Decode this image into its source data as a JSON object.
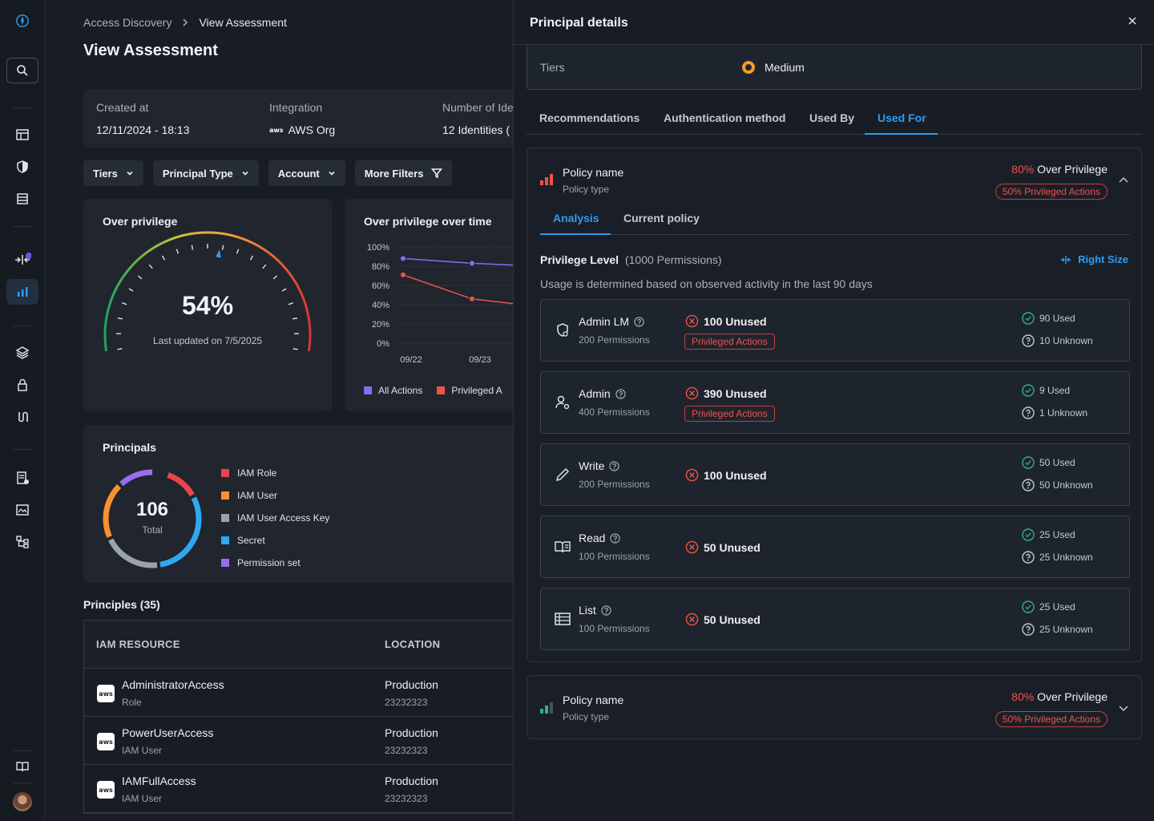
{
  "breadcrumb": {
    "parent": "Access Discovery",
    "current": "View Assessment"
  },
  "page_title": "View Assessment",
  "summary": {
    "created_label": "Created at",
    "created_value": "12/11/2024 - 18:13",
    "integration_label": "Integration",
    "integration_value": "AWS Org",
    "identities_label": "Number of Ide",
    "identities_value": "12 Identities ("
  },
  "filters": [
    "Tiers",
    "Principal Type",
    "Account",
    "More Filters"
  ],
  "over_privilege": {
    "title": "Over privilege",
    "percent": "54%",
    "updated": "Last updated on 7/5/2025",
    "value": 54
  },
  "over_time": {
    "title": "Over privilege over time",
    "legend": [
      "All Actions",
      "Privileged A"
    ],
    "colors": [
      "#8b6cf0",
      "#f0524b"
    ]
  },
  "chart_data": {
    "type": "line",
    "x": [
      "09/22",
      "09/23"
    ],
    "yticks": [
      "100%",
      "80%",
      "60%",
      "40%",
      "20%",
      "0%"
    ],
    "ylim": [
      0,
      100
    ],
    "series": [
      {
        "name": "All Actions",
        "values": [
          88,
          83
        ]
      },
      {
        "name": "Privileged A",
        "values": [
          71,
          46
        ]
      }
    ]
  },
  "principals": {
    "title": "Principals",
    "total": "106",
    "total_label": "Total",
    "legend": [
      {
        "label": "IAM Role",
        "color": "#e8454a"
      },
      {
        "label": "IAM User",
        "color": "#f5922f"
      },
      {
        "label": "IAM User Access Key",
        "color": "#9aa2ad"
      },
      {
        "label": "Secret",
        "color": "#2fa8f0"
      },
      {
        "label": "Permission set",
        "color": "#9b6cf0"
      }
    ]
  },
  "principles_section": "Principles (35)",
  "table": {
    "headers": [
      "IAM RESOURCE",
      "LOCATION"
    ],
    "rows": [
      {
        "name": "AdministratorAccess",
        "type": "Role",
        "location": "Production",
        "account": "23232323",
        "logo": "aws"
      },
      {
        "name": "PowerUserAccess",
        "type": "IAM User",
        "location": "Production",
        "account": "23232323",
        "logo": "aws"
      },
      {
        "name": "IAMFullAccess",
        "type": "IAM User",
        "location": "Production",
        "account": "23232323",
        "logo": "aws"
      }
    ]
  },
  "drawer": {
    "title": "Principal details",
    "tiers_label": "Tiers",
    "tiers_value": "Medium",
    "tabs": [
      "Recommendations",
      "Authentication method",
      "Used By",
      "Used For"
    ],
    "policy1": {
      "name": "Policy name",
      "type": "Policy type",
      "over_pct": "80%",
      "over_label": "Over Privilege",
      "badge": "50% Privileged Actions",
      "subtabs": [
        "Analysis",
        "Current policy"
      ],
      "priv_level": "Privilege Level",
      "priv_count": "(1000 Permissions)",
      "right_size": "Right Size",
      "usage_note": "Usage is determined based on observed activity in the last 90 days",
      "permissions": [
        {
          "name": "Admin LM",
          "count": "200 Permissions",
          "unused": "100 Unused",
          "badge": "Privileged Actions",
          "used": "90 Used",
          "unknown": "10 Unknown"
        },
        {
          "name": "Admin",
          "count": "400 Permissions",
          "unused": "390 Unused",
          "badge": "Privileged Actions",
          "used": "9 Used",
          "unknown": "1 Unknown"
        },
        {
          "name": "Write",
          "count": "200 Permissions",
          "unused": "100 Unused",
          "badge": "",
          "used": "50 Used",
          "unknown": "50 Unknown"
        },
        {
          "name": "Read",
          "count": "100 Permissions",
          "unused": "50 Unused",
          "badge": "",
          "used": "25 Used",
          "unknown": "25 Unknown"
        },
        {
          "name": "List",
          "count": "100 Permissions",
          "unused": "50 Unused",
          "badge": "",
          "used": "25 Used",
          "unknown": "25 Unknown"
        }
      ]
    },
    "policy2": {
      "name": "Policy name",
      "type": "Policy type",
      "over_pct": "80%",
      "over_label": "Over Privilege",
      "badge": "50% Privileged Actions"
    }
  }
}
